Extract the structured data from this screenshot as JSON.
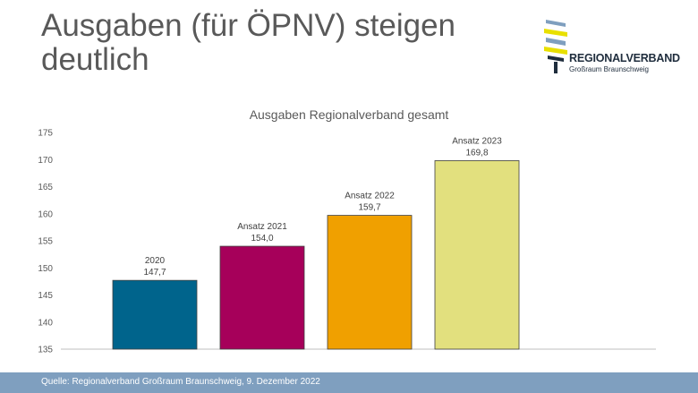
{
  "slide": {
    "title": "Ausgaben (für ÖPNV) steigen deutlich",
    "footer_source": "Quelle: Regionalverband Großraum Braunschweig, 9. Dezember 2022"
  },
  "logo": {
    "name": "REGIONALVERBAND",
    "subtitle": "Großraum Braunschweig",
    "colors": [
      "#7f9fbf",
      "#e8e000",
      "#1f2d3d"
    ]
  },
  "chart_data": {
    "type": "bar",
    "title": "Ausgaben Regionalverband gesamt",
    "xlabel": "",
    "ylabel": "",
    "ylim": [
      135,
      175
    ],
    "yticks": [
      135,
      140,
      145,
      150,
      155,
      160,
      165,
      170,
      175
    ],
    "grid": false,
    "bars": [
      {
        "label_line1": "2020",
        "value": 147.7,
        "value_label": "147,7",
        "color": "#00648c"
      },
      {
        "label_line1": "Ansatz 2021",
        "value": 154.0,
        "value_label": "154,0",
        "color": "#a6005a"
      },
      {
        "label_line1": "Ansatz 2022",
        "value": 159.7,
        "value_label": "159,7",
        "color": "#f0a000"
      },
      {
        "label_line1": "Ansatz 2023",
        "value": 169.8,
        "value_label": "169,8",
        "color": "#e2e07e"
      }
    ]
  }
}
